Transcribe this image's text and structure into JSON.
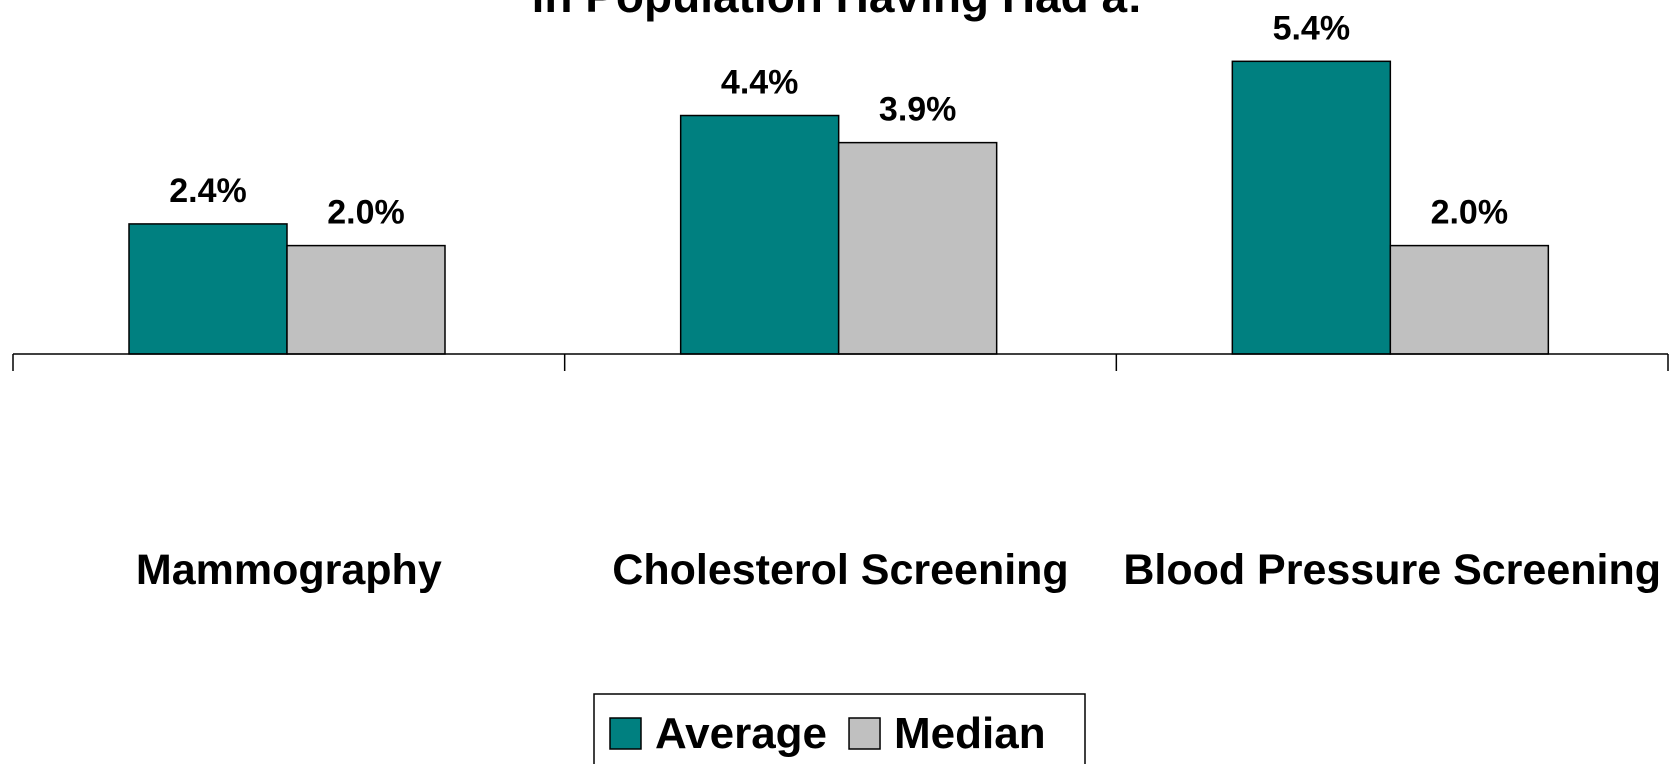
{
  "chart_data": {
    "type": "bar",
    "title": "in Population Having Had a:",
    "categories": [
      "Mammography",
      "Cholesterol Screening",
      "Blood Pressure Screening"
    ],
    "series": [
      {
        "name": "Average",
        "color": "#008080",
        "values": [
          2.4,
          4.4,
          5.4
        ],
        "value_labels": [
          "2.4%",
          "4.4%",
          "5.4%"
        ]
      },
      {
        "name": "Median",
        "color": "#c0c0c0",
        "values": [
          2.0,
          3.9,
          2.0
        ],
        "value_labels": [
          "2.0%",
          "3.9%",
          "2.0%"
        ]
      }
    ],
    "legend": "bottom"
  }
}
